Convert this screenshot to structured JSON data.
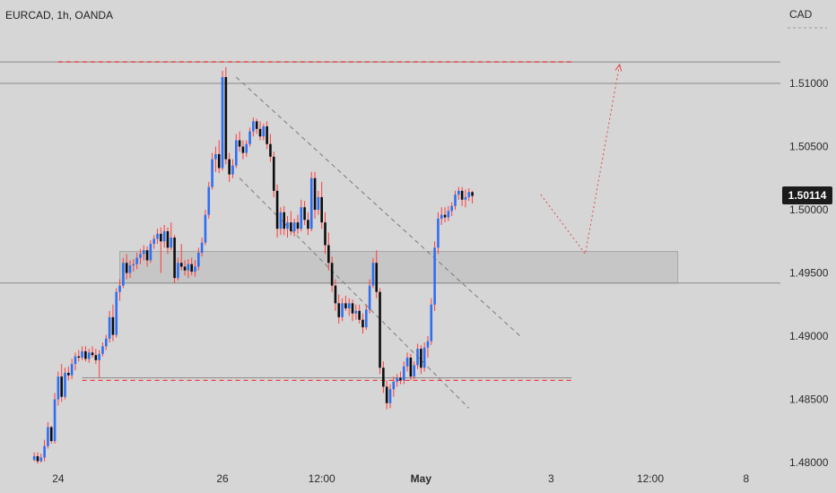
{
  "header": {
    "title": "EURCAD, 1h, OANDA",
    "currency": "CAD"
  },
  "price_label": {
    "value": "1.50114"
  },
  "chart_data": {
    "type": "candlestick",
    "title": "EURCAD, 1h, OANDA",
    "ylim": [
      1.48,
      1.5166
    ],
    "y_ticks": [
      {
        "value": 1.51,
        "label": "1.51000"
      },
      {
        "value": 1.505,
        "label": "1.50500"
      },
      {
        "value": 1.5,
        "label": "1.50000"
      },
      {
        "value": 1.495,
        "label": "1.49500"
      },
      {
        "value": 1.49,
        "label": "1.49000"
      },
      {
        "value": 1.485,
        "label": "1.48500"
      },
      {
        "value": 1.48,
        "label": "1.48000"
      }
    ],
    "x_ticks": [
      {
        "label": "24",
        "t": 7,
        "bold": false
      },
      {
        "label": "26",
        "t": 55,
        "bold": false
      },
      {
        "label": "12:00",
        "t": 84,
        "bold": false
      },
      {
        "label": "May",
        "t": 113,
        "bold": true
      },
      {
        "label": "3",
        "t": 151,
        "bold": false
      },
      {
        "label": "12:00",
        "t": 180,
        "bold": false
      },
      {
        "label": "8",
        "t": 208,
        "bold": false
      }
    ],
    "x_range": [
      -10.0,
      218.0
    ],
    "last_price": 1.50114,
    "colors": {
      "up_body": "#2f6ef0",
      "down_body": "#0d0d0d",
      "wick": "#ff3b3b",
      "level_line": "#f03c3c",
      "zone_fill": "#c6c6c6",
      "channel": "#7a7a7a"
    },
    "horizontal_lines": [
      {
        "price": 1.5117,
        "style": "solid",
        "t_start": -10,
        "t_end": 218
      },
      {
        "price": 1.51,
        "style": "solid",
        "t_start": -10,
        "t_end": 218
      },
      {
        "price": 1.4942,
        "style": "solid",
        "t_start": -10,
        "t_end": 218
      },
      {
        "price": 1.4867,
        "style": "solid",
        "t_start": 14,
        "t_end": 157
      }
    ],
    "support_resistance": [
      {
        "price": 1.5117,
        "t_start": 7,
        "t_end": 157
      },
      {
        "price": 1.4865,
        "t_start": 14,
        "t_end": 157
      }
    ],
    "zone": {
      "price_top": 1.4967,
      "price_bottom": 1.4942,
      "t_start": 25,
      "t_end": 188
    },
    "channel_lines": [
      {
        "t1": 59,
        "p1": 1.5105,
        "t2": 142,
        "p2": 1.49
      },
      {
        "t1": 60,
        "p1": 1.5025,
        "t2": 127,
        "p2": 1.4843
      }
    ],
    "projection": [
      {
        "t": 148,
        "p": 1.5012
      },
      {
        "t": 161,
        "p": 1.4965
      },
      {
        "t": 171,
        "p": 1.5115
      }
    ],
    "candles": [
      [
        0,
        1.4802,
        1.4808,
        1.4801,
        1.4805
      ],
      [
        1,
        1.4805,
        1.4808,
        1.4799,
        1.4801
      ],
      [
        2,
        1.4801,
        1.4807,
        1.48,
        1.4804
      ],
      [
        3,
        1.4804,
        1.4818,
        1.4801,
        1.4813
      ],
      [
        4,
        1.4813,
        1.4832,
        1.4811,
        1.4828
      ],
      [
        5,
        1.4828,
        1.4829,
        1.4815,
        1.4817
      ],
      [
        6,
        1.4817,
        1.4855,
        1.4815,
        1.485
      ],
      [
        7,
        1.485,
        1.4872,
        1.4845,
        1.4868
      ],
      [
        8,
        1.4868,
        1.4878,
        1.4848,
        1.4852
      ],
      [
        9,
        1.4852,
        1.4875,
        1.485,
        1.4871
      ],
      [
        10,
        1.4871,
        1.4876,
        1.4865,
        1.4869
      ],
      [
        11,
        1.4869,
        1.4882,
        1.4866,
        1.4878
      ],
      [
        12,
        1.4878,
        1.4887,
        1.4873,
        1.4884
      ],
      [
        13,
        1.4884,
        1.4889,
        1.488,
        1.4883
      ],
      [
        14,
        1.4883,
        1.4892,
        1.4881,
        1.4888
      ],
      [
        15,
        1.4888,
        1.4892,
        1.488,
        1.4882
      ],
      [
        16,
        1.4882,
        1.489,
        1.4879,
        1.4887
      ],
      [
        17,
        1.4887,
        1.4892,
        1.4883,
        1.4885
      ],
      [
        18,
        1.4885,
        1.489,
        1.4878,
        1.4881
      ],
      [
        19,
        1.4881,
        1.4889,
        1.4867,
        1.4886
      ],
      [
        20,
        1.4886,
        1.4895,
        1.4884,
        1.4892
      ],
      [
        21,
        1.4892,
        1.4901,
        1.4889,
        1.4898
      ],
      [
        22,
        1.4898,
        1.492,
        1.4895,
        1.4915
      ],
      [
        23,
        1.4915,
        1.4925,
        1.4896,
        1.4901
      ],
      [
        24,
        1.4901,
        1.4938,
        1.4899,
        1.4935
      ],
      [
        25,
        1.4935,
        1.4945,
        1.4928,
        1.494
      ],
      [
        26,
        1.494,
        1.4962,
        1.4938,
        1.4958
      ],
      [
        27,
        1.4958,
        1.4965,
        1.4945,
        1.495
      ],
      [
        28,
        1.495,
        1.496,
        1.4946,
        1.4956
      ],
      [
        29,
        1.4956,
        1.4961,
        1.4951,
        1.4957
      ],
      [
        30,
        1.4957,
        1.4966,
        1.4953,
        1.4962
      ],
      [
        31,
        1.4962,
        1.4969,
        1.4957,
        1.4965
      ],
      [
        32,
        1.4965,
        1.4972,
        1.496,
        1.4968
      ],
      [
        33,
        1.4968,
        1.4971,
        1.4955,
        1.496
      ],
      [
        34,
        1.496,
        1.4976,
        1.4958,
        1.4973
      ],
      [
        35,
        1.4973,
        1.498,
        1.4969,
        1.4977
      ],
      [
        36,
        1.4977,
        1.4985,
        1.4973,
        1.4981
      ],
      [
        37,
        1.4981,
        1.4986,
        1.495,
        1.4975
      ],
      [
        38,
        1.4975,
        1.4988,
        1.497,
        1.4983
      ],
      [
        39,
        1.4983,
        1.4986,
        1.4965,
        1.497
      ],
      [
        40,
        1.497,
        1.499,
        1.4968,
        1.4978
      ],
      [
        41,
        1.4978,
        1.498,
        1.4942,
        1.4946
      ],
      [
        42,
        1.4946,
        1.4962,
        1.4944,
        1.4958
      ],
      [
        43,
        1.4958,
        1.4973,
        1.4952,
        1.4955
      ],
      [
        44,
        1.4955,
        1.496,
        1.4948,
        1.4952
      ],
      [
        45,
        1.4952,
        1.4961,
        1.4946,
        1.4957
      ],
      [
        46,
        1.4957,
        1.4962,
        1.4948,
        1.4951
      ],
      [
        47,
        1.4951,
        1.496,
        1.4947,
        1.4955
      ],
      [
        48,
        1.4955,
        1.497,
        1.4952,
        1.4966
      ],
      [
        49,
        1.4966,
        1.4978,
        1.4963,
        1.4974
      ],
      [
        50,
        1.4974,
        1.5,
        1.4972,
        1.4996
      ],
      [
        51,
        1.4996,
        1.5022,
        1.4993,
        1.5018
      ],
      [
        52,
        1.5018,
        1.5045,
        1.5016,
        1.504
      ],
      [
        53,
        1.504,
        1.505,
        1.503,
        1.5044
      ],
      [
        54,
        1.5044,
        1.5055,
        1.5029,
        1.5033
      ],
      [
        55,
        1.5033,
        1.511,
        1.5031,
        1.5105
      ],
      [
        56,
        1.5105,
        1.5113,
        1.5036,
        1.504
      ],
      [
        57,
        1.504,
        1.5045,
        1.5022,
        1.5028
      ],
      [
        58,
        1.5028,
        1.504,
        1.5025,
        1.5035
      ],
      [
        59,
        1.5035,
        1.506,
        1.5033,
        1.5055
      ],
      [
        60,
        1.5055,
        1.5062,
        1.5046,
        1.505
      ],
      [
        61,
        1.505,
        1.5055,
        1.504,
        1.5045
      ],
      [
        62,
        1.5045,
        1.5055,
        1.5042,
        1.5052
      ],
      [
        63,
        1.5052,
        1.5065,
        1.505,
        1.5062
      ],
      [
        64,
        1.5062,
        1.5073,
        1.5058,
        1.507
      ],
      [
        65,
        1.507,
        1.5072,
        1.506,
        1.5064
      ],
      [
        66,
        1.5064,
        1.507,
        1.5055,
        1.5058
      ],
      [
        67,
        1.5058,
        1.5068,
        1.5055,
        1.5066
      ],
      [
        68,
        1.5066,
        1.507,
        1.5048,
        1.5052
      ],
      [
        69,
        1.5052,
        1.506,
        1.5038,
        1.5042
      ],
      [
        70,
        1.5042,
        1.5046,
        1.501,
        1.5015
      ],
      [
        71,
        1.5015,
        1.502,
        1.4978,
        1.4985
      ],
      [
        72,
        1.4985,
        1.5002,
        1.498,
        1.4998
      ],
      [
        73,
        1.4998,
        1.5003,
        1.498,
        1.4985
      ],
      [
        74,
        1.4985,
        1.4995,
        1.4978,
        1.499
      ],
      [
        75,
        1.499,
        1.4999,
        1.498,
        1.4983
      ],
      [
        76,
        1.4983,
        1.4993,
        1.4979,
        1.499
      ],
      [
        77,
        1.499,
        1.4996,
        1.4981,
        1.4985
      ],
      [
        78,
        1.4985,
        1.5008,
        1.4983,
        1.5002
      ],
      [
        79,
        1.5002,
        1.5007,
        1.4988,
        1.4992
      ],
      [
        80,
        1.4992,
        1.4998,
        1.498,
        1.4985
      ],
      [
        81,
        1.4985,
        1.503,
        1.4983,
        1.5025
      ],
      [
        82,
        1.5025,
        1.503,
        1.4993,
        1.5
      ],
      [
        83,
        1.5,
        1.5015,
        1.4996,
        1.501
      ],
      [
        84,
        1.501,
        1.5022,
        1.4985,
        1.499
      ],
      [
        85,
        1.499,
        1.4998,
        1.4965,
        1.4972
      ],
      [
        86,
        1.4972,
        1.4982,
        1.4952,
        1.4958
      ],
      [
        87,
        1.4958,
        1.4963,
        1.4935,
        1.494
      ],
      [
        88,
        1.494,
        1.4945,
        1.492,
        1.4926
      ],
      [
        89,
        1.4926,
        1.4933,
        1.491,
        1.4915
      ],
      [
        90,
        1.4915,
        1.493,
        1.4912,
        1.4926
      ],
      [
        91,
        1.4926,
        1.4932,
        1.492,
        1.4922
      ],
      [
        92,
        1.4922,
        1.493,
        1.4916,
        1.4926
      ],
      [
        93,
        1.4926,
        1.4929,
        1.4912,
        1.4918
      ],
      [
        94,
        1.4918,
        1.4925,
        1.4913,
        1.492
      ],
      [
        95,
        1.492,
        1.4925,
        1.491,
        1.4913
      ],
      [
        96,
        1.4913,
        1.4918,
        1.4902,
        1.4907
      ],
      [
        97,
        1.4907,
        1.4925,
        1.4905,
        1.4921
      ],
      [
        98,
        1.4921,
        1.4945,
        1.4918,
        1.494
      ],
      [
        99,
        1.494,
        1.4962,
        1.4938,
        1.4958
      ],
      [
        100,
        1.4958,
        1.4968,
        1.493,
        1.4935
      ],
      [
        101,
        1.4935,
        1.4938,
        1.487,
        1.4875
      ],
      [
        102,
        1.4875,
        1.488,
        1.4855,
        1.486
      ],
      [
        103,
        1.486,
        1.4865,
        1.4842,
        1.4847
      ],
      [
        104,
        1.4847,
        1.4862,
        1.4843,
        1.4858
      ],
      [
        105,
        1.4858,
        1.4868,
        1.4852,
        1.4864
      ],
      [
        106,
        1.4864,
        1.487,
        1.486,
        1.4867
      ],
      [
        107,
        1.4867,
        1.4872,
        1.4862,
        1.4865
      ],
      [
        108,
        1.4865,
        1.488,
        1.4862,
        1.4876
      ],
      [
        109,
        1.4876,
        1.4887,
        1.4872,
        1.4883
      ],
      [
        110,
        1.4883,
        1.4886,
        1.4865,
        1.4868
      ],
      [
        111,
        1.4868,
        1.488,
        1.4866,
        1.4877
      ],
      [
        112,
        1.4877,
        1.4894,
        1.4874,
        1.489
      ],
      [
        113,
        1.489,
        1.4893,
        1.487,
        1.4875
      ],
      [
        114,
        1.4875,
        1.4895,
        1.4872,
        1.4891
      ],
      [
        115,
        1.4891,
        1.49,
        1.4883,
        1.4896
      ],
      [
        116,
        1.4896,
        1.493,
        1.4893,
        1.4925
      ],
      [
        117,
        1.4925,
        1.4975,
        1.492,
        1.497
      ],
      [
        118,
        1.497,
        1.4998,
        1.4965,
        1.4993
      ],
      [
        119,
        1.4993,
        1.5002,
        1.4988,
        1.4996
      ],
      [
        120,
        1.4996,
        1.5002,
        1.499,
        1.4994
      ],
      [
        121,
        1.4994,
        1.5003,
        1.4991,
        1.4999
      ],
      [
        122,
        1.4999,
        1.5006,
        1.4995,
        1.5003
      ],
      [
        123,
        1.5003,
        1.5015,
        1.5,
        1.5012
      ],
      [
        124,
        1.5012,
        1.5018,
        1.5008,
        1.5015
      ],
      [
        125,
        1.5015,
        1.5018,
        1.5003,
        1.5008
      ],
      [
        126,
        1.5008,
        1.5016,
        1.5002,
        1.501
      ],
      [
        127,
        1.501,
        1.5017,
        1.5007,
        1.5014
      ],
      [
        128,
        1.5014,
        1.5015,
        1.5005,
        1.5011
      ]
    ]
  }
}
